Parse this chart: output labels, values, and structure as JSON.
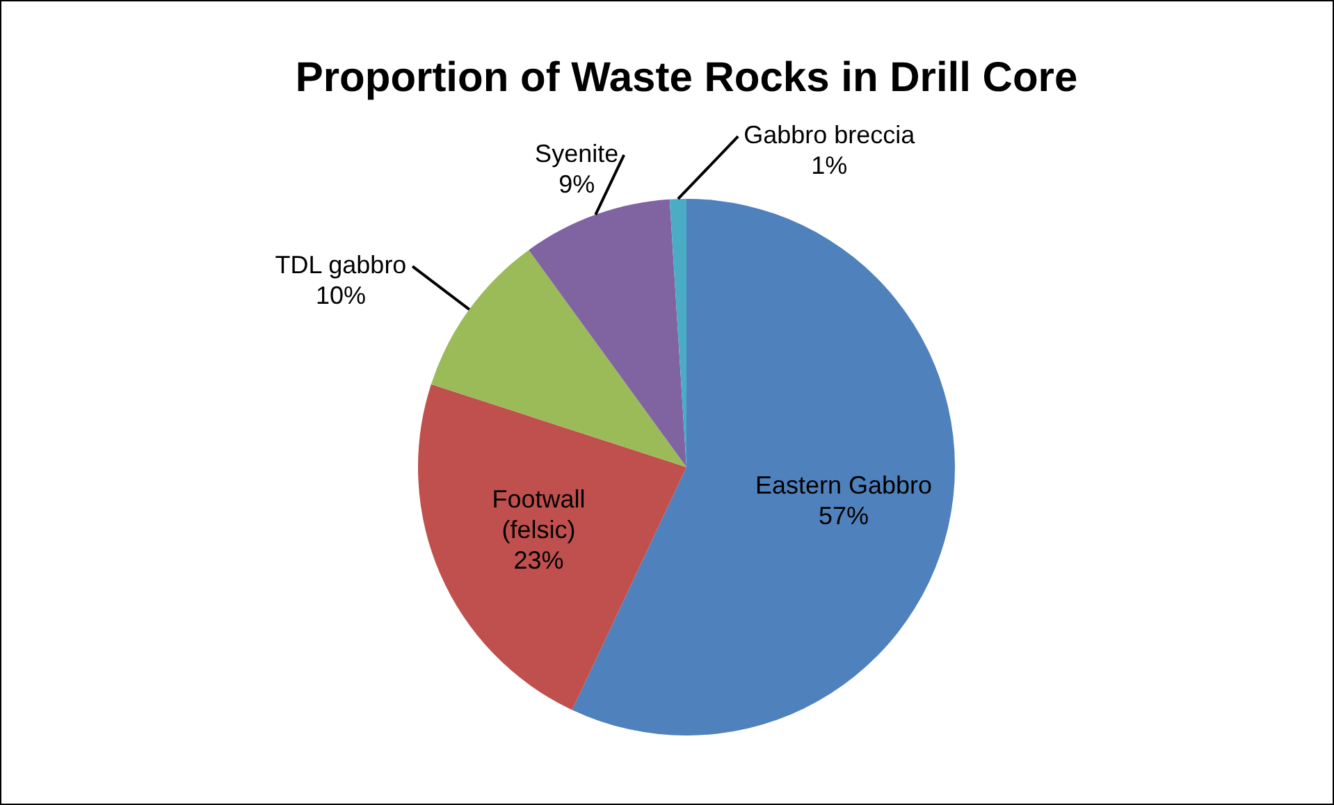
{
  "chart_data": {
    "type": "pie",
    "title": "Proportion of Waste Rocks in Drill Core",
    "categories": [
      "Eastern Gabbro",
      "Footwall (felsic)",
      "TDL gabbro",
      "Syenite",
      "Gabbro breccia"
    ],
    "values": [
      57,
      23,
      10,
      9,
      1
    ],
    "colors": [
      "#4f81bd",
      "#c0504d",
      "#9bbb59",
      "#8064a2",
      "#4bacc6"
    ],
    "value_labels": [
      "57%",
      "23%",
      "10%",
      "9%",
      "1%"
    ],
    "legend": false
  }
}
